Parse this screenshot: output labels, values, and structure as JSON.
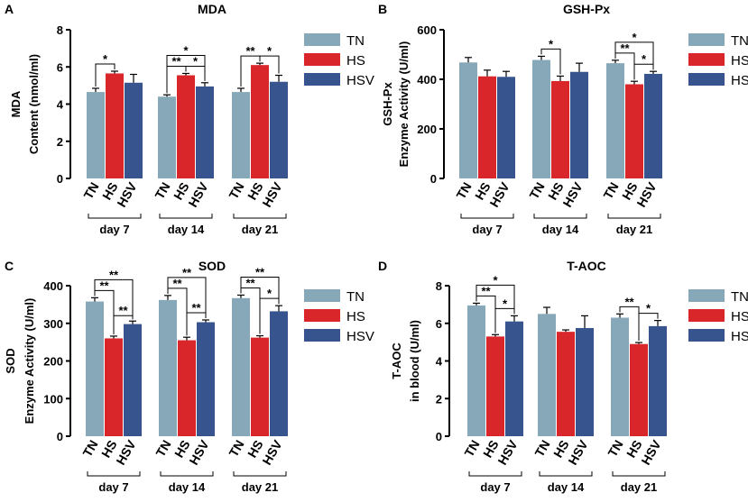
{
  "colors": {
    "TN": "#86a8b8",
    "HS": "#d8262b",
    "HSV": "#37548e"
  },
  "chart_data": [
    {
      "panel": "A",
      "type": "bar",
      "title": "MDA",
      "ylabel": [
        "MDA",
        "Content (nmol/ml)"
      ],
      "ylim": [
        0,
        8
      ],
      "yticks": [
        0,
        2,
        4,
        6,
        8
      ],
      "groups": [
        "day 7",
        "day 14",
        "day 21"
      ],
      "series_names": [
        "TN",
        "HS",
        "HSV"
      ],
      "values": [
        [
          4.65,
          5.65,
          5.15
        ],
        [
          4.4,
          5.55,
          4.95
        ],
        [
          4.65,
          6.1,
          5.2
        ]
      ],
      "errors": [
        [
          0.2,
          0.12,
          0.45
        ],
        [
          0.1,
          0.1,
          0.2
        ],
        [
          0.2,
          0.1,
          0.35
        ]
      ],
      "sig": [
        {
          "g": 0,
          "from": 0,
          "to": 1,
          "level": 0,
          "label": "*"
        },
        {
          "g": 1,
          "from": 0,
          "to": 1,
          "level": 0,
          "label": "**"
        },
        {
          "g": 1,
          "from": 1,
          "to": 2,
          "level": 0,
          "label": "*"
        },
        {
          "g": 1,
          "from": 0,
          "to": 2,
          "level": 1,
          "label": "*"
        },
        {
          "g": 2,
          "from": 0,
          "to": 1,
          "level": 0,
          "label": "**"
        },
        {
          "g": 2,
          "from": 1,
          "to": 2,
          "level": 0,
          "label": "*"
        }
      ]
    },
    {
      "panel": "B",
      "type": "bar",
      "title": "GSH-Px",
      "ylabel": [
        "GSH-Px",
        "Enzyme Activity (U/ml)"
      ],
      "ylim": [
        0,
        600
      ],
      "yticks": [
        0,
        200,
        400,
        600
      ],
      "groups": [
        "day 7",
        "day 14",
        "day 21"
      ],
      "series_names": [
        "TN",
        "HS",
        "HSV"
      ],
      "values": [
        [
          468,
          412,
          410
        ],
        [
          478,
          393,
          430
        ],
        [
          465,
          380,
          422
        ]
      ],
      "errors": [
        [
          20,
          25,
          22
        ],
        [
          15,
          20,
          35
        ],
        [
          12,
          12,
          10
        ]
      ],
      "sig": [
        {
          "g": 1,
          "from": 0,
          "to": 1,
          "level": 0,
          "label": "*"
        },
        {
          "g": 2,
          "from": 0,
          "to": 1,
          "level": 0,
          "label": "**"
        },
        {
          "g": 2,
          "from": 1,
          "to": 2,
          "level": 0,
          "label": "*"
        },
        {
          "g": 2,
          "from": 0,
          "to": 2,
          "level": 1,
          "label": "*"
        }
      ]
    },
    {
      "panel": "C",
      "type": "bar",
      "title": "SOD",
      "ylabel": [
        "SOD",
        "Enzyme Activity (U/ml)"
      ],
      "ylim": [
        0,
        400
      ],
      "yticks": [
        0,
        100,
        200,
        300,
        400
      ],
      "groups": [
        "day 7",
        "day 14",
        "day 21"
      ],
      "series_names": [
        "TN",
        "HS",
        "HSV"
      ],
      "values": [
        [
          358,
          260,
          298
        ],
        [
          362,
          255,
          303
        ],
        [
          367,
          262,
          332
        ]
      ],
      "errors": [
        [
          10,
          6,
          8
        ],
        [
          12,
          8,
          6
        ],
        [
          8,
          5,
          15
        ]
      ],
      "sig": [
        {
          "g": 0,
          "from": 0,
          "to": 1,
          "level": 0,
          "label": "**"
        },
        {
          "g": 0,
          "from": 0,
          "to": 2,
          "level": 1,
          "label": "**"
        },
        {
          "g": 0,
          "from": 1,
          "to": 2,
          "level": -1,
          "label": "**"
        },
        {
          "g": 1,
          "from": 0,
          "to": 1,
          "level": 0,
          "label": "**"
        },
        {
          "g": 1,
          "from": 0,
          "to": 2,
          "level": 1,
          "label": "**"
        },
        {
          "g": 1,
          "from": 1,
          "to": 2,
          "level": 0,
          "label": "**"
        },
        {
          "g": 2,
          "from": 0,
          "to": 1,
          "level": 0,
          "label": "**"
        },
        {
          "g": 2,
          "from": 0,
          "to": 2,
          "level": 1,
          "label": "**"
        },
        {
          "g": 2,
          "from": 1,
          "to": 2,
          "level": 0,
          "label": "*"
        }
      ]
    },
    {
      "panel": "D",
      "type": "bar",
      "title": "T-AOC",
      "ylabel": [
        "T-AOC",
        "in blood (U/ml)"
      ],
      "ylim": [
        0,
        8
      ],
      "yticks": [
        0,
        2,
        4,
        6,
        8
      ],
      "groups": [
        "day 7",
        "day 14",
        "day 21"
      ],
      "series_names": [
        "TN",
        "HS",
        "HSV"
      ],
      "values": [
        [
          6.95,
          5.3,
          6.1
        ],
        [
          6.5,
          5.55,
          5.75
        ],
        [
          6.3,
          4.9,
          5.85
        ]
      ],
      "errors": [
        [
          0.12,
          0.1,
          0.3
        ],
        [
          0.35,
          0.1,
          0.65
        ],
        [
          0.2,
          0.08,
          0.3
        ]
      ],
      "sig": [
        {
          "g": 0,
          "from": 0,
          "to": 1,
          "level": 0,
          "label": "**"
        },
        {
          "g": 0,
          "from": 0,
          "to": 2,
          "level": 1,
          "label": "*"
        },
        {
          "g": 0,
          "from": 1,
          "to": 2,
          "level": 0,
          "label": "*"
        },
        {
          "g": 2,
          "from": 0,
          "to": 1,
          "level": 0,
          "label": "**"
        },
        {
          "g": 2,
          "from": 1,
          "to": 2,
          "level": 0,
          "label": "*"
        }
      ]
    }
  ]
}
